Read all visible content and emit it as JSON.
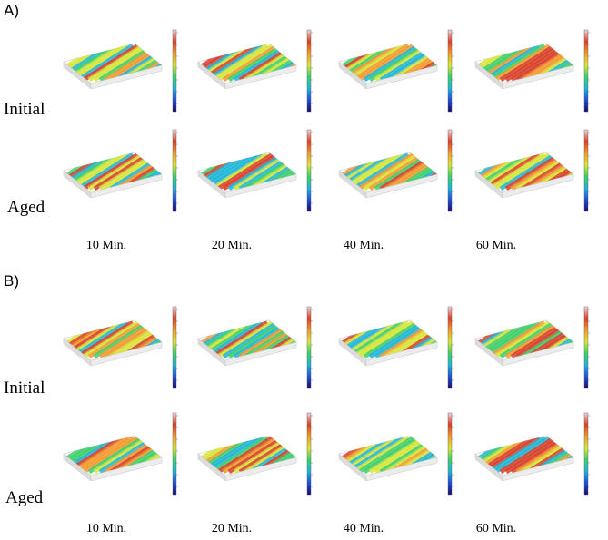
{
  "panels": [
    {
      "label": "A)",
      "rows": [
        "Initial",
        "Aged"
      ],
      "columns": [
        "10 Min.",
        "20 Min.",
        "40 Min.",
        "60 Min."
      ]
    },
    {
      "label": "B)",
      "rows": [
        "Initial",
        "Aged"
      ],
      "columns": [
        "10 Min.",
        "20 Min.",
        "40 Min.",
        "60 Min."
      ]
    }
  ],
  "colors": {
    "colormap": [
      "#1a0a6e",
      "#1f4fd8",
      "#1fb5d8",
      "#3ecf6a",
      "#d7e63a",
      "#f29a2e",
      "#d8402a",
      "#f4d6d6"
    ],
    "box_frame": "#c8c8c8"
  }
}
